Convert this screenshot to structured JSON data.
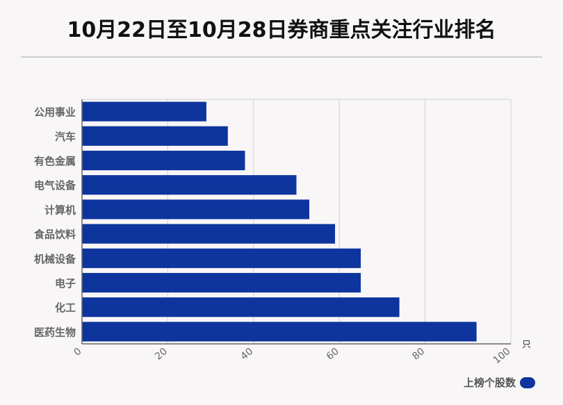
{
  "title": "10月22日至10月28日券商重点关注行业排名",
  "chart_data": {
    "type": "bar",
    "orientation": "horizontal",
    "categories": [
      "公用事业",
      "汽车",
      "有色金属",
      "电气设备",
      "计算机",
      "食品饮料",
      "机械设备",
      "电子",
      "化工",
      "医药生物"
    ],
    "series": [
      {
        "name": "上榜个股数",
        "values": [
          29,
          34,
          38,
          50,
          53,
          59,
          65,
          65,
          74,
          92
        ]
      }
    ],
    "xlim": [
      0,
      100
    ],
    "xticks": [
      0,
      20,
      40,
      60,
      80,
      100
    ],
    "xunit": "只",
    "grid": true,
    "legend": "bottom-right"
  },
  "colors": {
    "bar": "#0e359e",
    "grid": "#d0d0d0",
    "axis": "#666666",
    "label": "#666666"
  }
}
